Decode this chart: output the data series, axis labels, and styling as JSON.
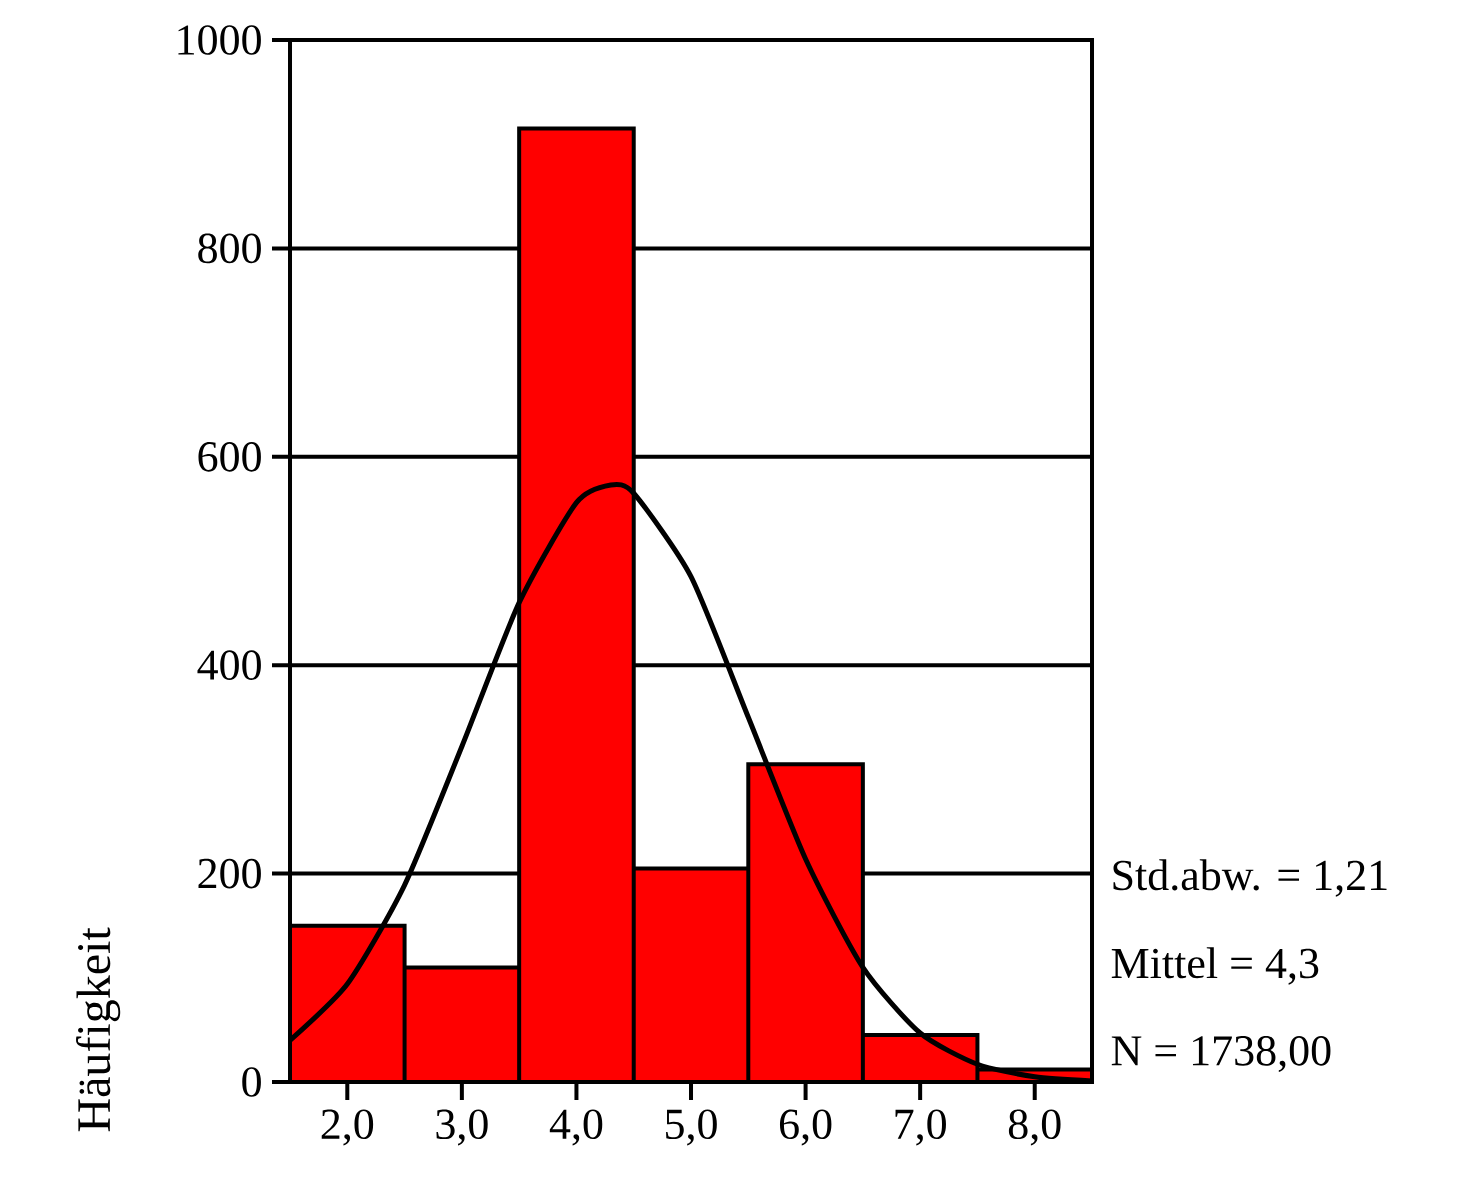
{
  "chart_data": {
    "type": "histogram",
    "ylabel": "Häufigkeit",
    "annotations": [
      "Std.abw. = 1,21",
      "Mittel = 4,3",
      "N = 1738,00"
    ],
    "series": [
      {
        "color": "#ff0000",
        "bins": [
          1.5,
          2.5,
          3.5,
          4.5,
          5.5,
          6.5,
          7.5,
          8.5
        ],
        "values": [
          150,
          110,
          915,
          205,
          305,
          45,
          12
        ]
      },
      {
        "type": "line",
        "color": "#000000",
        "x": [
          1.5,
          2.0,
          2.5,
          3.0,
          3.5,
          4.0,
          4.3,
          4.5,
          5.0,
          5.5,
          6.0,
          6.5,
          7.0,
          7.5,
          8.0,
          8.5
        ],
        "values": [
          40,
          94,
          189,
          322,
          460,
          556,
          573,
          565,
          485,
          350,
          214,
          110,
          47,
          17,
          5,
          1
        ]
      }
    ],
    "xlim": [
      1.5,
      8.5
    ],
    "xticks": [
      {
        "value": 2,
        "label": "2,0"
      },
      {
        "value": 3,
        "label": "3,0"
      },
      {
        "value": 4,
        "label": "4,0"
      },
      {
        "value": 5,
        "label": "5,0"
      },
      {
        "value": 6,
        "label": "6,0"
      },
      {
        "value": 7,
        "label": "7,0"
      },
      {
        "value": 8,
        "label": "8,0"
      }
    ],
    "ylim": [
      0,
      1000
    ],
    "yticks": [
      0,
      200,
      400,
      600,
      800,
      1000
    ],
    "grid": "y",
    "marker": "none",
    "line_style": "solid"
  }
}
